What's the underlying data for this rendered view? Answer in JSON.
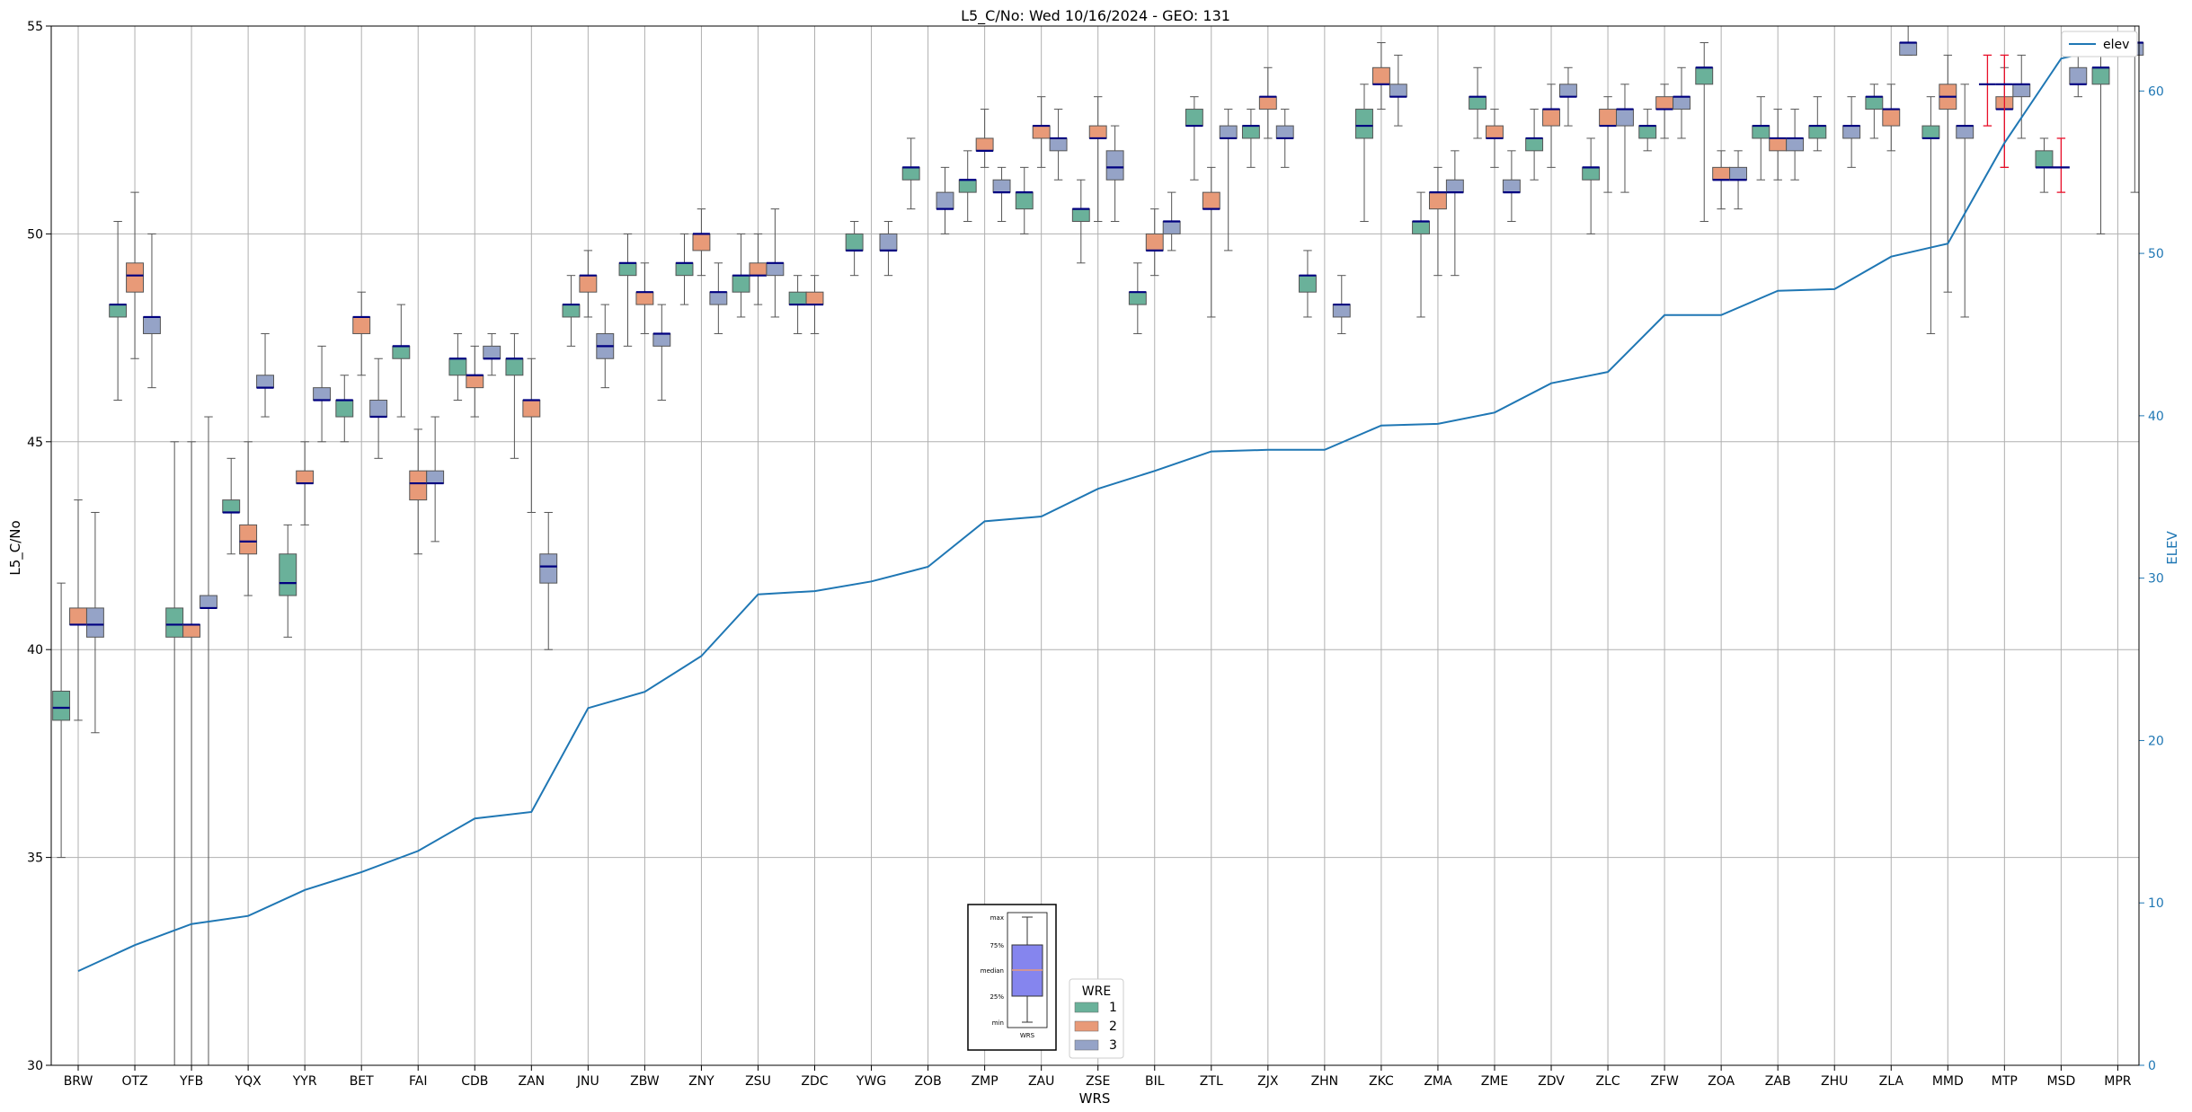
{
  "chart_data": {
    "type": "box",
    "title": "L5_C/No: Wed 10/16/2024 - GEO: 131",
    "xlabel": "WRS",
    "ylabel": "L5_C/No",
    "y2label": "ELEV",
    "ylim": [
      30,
      55
    ],
    "y2lim": [
      0,
      64
    ],
    "yticks": [
      "30",
      "35",
      "40",
      "45",
      "50",
      "55"
    ],
    "y2ticks": [
      "0",
      "10",
      "20",
      "30",
      "40",
      "50",
      "60"
    ],
    "grid": true,
    "categories": [
      "BRW",
      "OTZ",
      "YFB",
      "YQX",
      "YYR",
      "BET",
      "FAI",
      "CDB",
      "ZAN",
      "JNU",
      "ZBW",
      "ZNY",
      "ZSU",
      "ZDC",
      "YWG",
      "ZOB",
      "ZMP",
      "ZAU",
      "ZSE",
      "BIL",
      "ZTL",
      "ZJX",
      "ZHN",
      "ZKC",
      "ZMA",
      "ZME",
      "ZDV",
      "ZLC",
      "ZFW",
      "ZOA",
      "ZAB",
      "ZHU",
      "ZLA",
      "MMD",
      "MTP",
      "MSD",
      "MPR"
    ],
    "legend": {
      "title": "WRE",
      "entries": [
        "1",
        "2",
        "3"
      ],
      "colors": [
        "#6ab19a",
        "#e89a78",
        "#95a3c7"
      ],
      "placement": "bottom-center"
    },
    "line_legend": {
      "label": "elev",
      "placement": "top-right",
      "color": "#1f77b4"
    },
    "key_labels": [
      "max",
      "75%",
      "median",
      "25%",
      "min",
      "WRS"
    ],
    "elev": [
      5.8,
      7.4,
      8.7,
      9.2,
      10.8,
      11.9,
      13.2,
      15.2,
      15.6,
      22.0,
      23.0,
      25.2,
      29.0,
      29.2,
      29.8,
      30.7,
      33.5,
      33.8,
      35.5,
      36.6,
      37.8,
      37.9,
      37.9,
      39.4,
      39.5,
      40.2,
      42.0,
      42.7,
      46.2,
      46.2,
      47.7,
      47.8,
      49.8,
      50.6,
      56.8,
      62.0,
      62.8
    ],
    "series": [
      {
        "name": "1",
        "color": "#6ab19a",
        "boxes": [
          [
            0,
            35.0,
            38.3,
            38.6,
            39.0,
            41.6
          ],
          [
            1,
            46.0,
            48.0,
            48.3,
            48.3,
            50.3
          ],
          [
            2,
            30.0,
            40.3,
            40.6,
            41.0,
            45.0
          ],
          [
            3,
            42.3,
            43.3,
            43.3,
            43.6,
            44.6
          ],
          [
            4,
            40.3,
            41.3,
            41.6,
            42.3,
            43.0
          ],
          [
            5,
            45.0,
            45.6,
            46.0,
            46.0,
            46.6
          ],
          [
            6,
            45.6,
            47.0,
            47.3,
            47.3,
            48.3
          ],
          [
            7,
            46.0,
            46.6,
            47.0,
            47.0,
            47.6
          ],
          [
            8,
            44.6,
            46.6,
            47.0,
            47.0,
            47.6
          ],
          [
            9,
            47.3,
            48.0,
            48.3,
            48.3,
            49.0
          ],
          [
            10,
            47.3,
            49.0,
            49.3,
            49.3,
            50.0
          ],
          [
            11,
            48.3,
            49.0,
            49.3,
            49.3,
            50.0
          ],
          [
            12,
            48.0,
            48.6,
            49.0,
            49.0,
            50.0
          ],
          [
            13,
            47.6,
            48.3,
            48.3,
            48.6,
            49.0
          ],
          [
            14,
            49.0,
            49.6,
            49.6,
            50.0,
            50.3
          ],
          [
            15,
            50.6,
            51.3,
            51.6,
            51.6,
            52.3
          ],
          [
            16,
            50.3,
            51.0,
            51.3,
            51.3,
            52.0
          ],
          [
            17,
            50.0,
            50.6,
            51.0,
            51.0,
            51.6
          ],
          [
            18,
            49.3,
            50.3,
            50.6,
            50.6,
            51.3
          ],
          [
            19,
            47.6,
            48.3,
            48.6,
            48.6,
            49.3
          ],
          [
            20,
            51.3,
            52.6,
            52.6,
            53.0,
            53.3
          ],
          [
            21,
            51.6,
            52.3,
            52.6,
            52.6,
            53.0
          ],
          [
            22,
            48.0,
            48.6,
            49.0,
            49.0,
            49.6
          ],
          [
            23,
            50.3,
            52.3,
            52.6,
            53.0,
            53.6
          ],
          [
            24,
            48.0,
            50.0,
            50.3,
            50.3,
            51.0
          ],
          [
            25,
            52.3,
            53.0,
            53.3,
            53.3,
            54.0
          ],
          [
            26,
            51.3,
            52.0,
            52.3,
            52.3,
            53.0
          ],
          [
            27,
            50.0,
            51.3,
            51.6,
            51.6,
            52.3
          ],
          [
            28,
            52.0,
            52.3,
            52.6,
            52.6,
            53.0
          ],
          [
            29,
            50.3,
            53.6,
            54.0,
            54.0,
            54.6
          ],
          [
            30,
            51.3,
            52.3,
            52.6,
            52.6,
            53.3
          ],
          [
            31,
            52.0,
            52.3,
            52.6,
            52.6,
            53.3
          ],
          [
            32,
            52.3,
            53.0,
            53.3,
            53.3,
            53.6
          ],
          [
            33,
            47.6,
            52.3,
            52.3,
            52.6,
            53.3
          ],
          [
            35,
            51.0,
            51.6,
            51.6,
            52.0,
            52.3
          ],
          [
            36,
            50.0,
            53.6,
            54.0,
            54.0,
            54.3
          ]
        ]
      },
      {
        "name": "2",
        "color": "#e89a78",
        "boxes": [
          [
            0,
            38.3,
            40.6,
            40.6,
            41.0,
            43.6
          ],
          [
            1,
            47.0,
            48.6,
            49.0,
            49.3,
            51.0
          ],
          [
            2,
            30.0,
            40.3,
            40.6,
            40.6,
            45.0
          ],
          [
            3,
            41.3,
            42.3,
            42.6,
            43.0,
            45.0
          ],
          [
            4,
            43.0,
            44.0,
            44.0,
            44.3,
            45.0
          ],
          [
            5,
            46.6,
            47.6,
            48.0,
            48.0,
            48.6
          ],
          [
            6,
            42.3,
            43.6,
            44.0,
            44.3,
            45.3
          ],
          [
            7,
            45.6,
            46.3,
            46.6,
            46.6,
            47.3
          ],
          [
            8,
            43.3,
            45.6,
            46.0,
            46.0,
            47.0
          ],
          [
            9,
            48.0,
            48.6,
            49.0,
            49.0,
            49.6
          ],
          [
            10,
            47.6,
            48.3,
            48.6,
            48.6,
            49.3
          ],
          [
            11,
            49.0,
            49.6,
            50.0,
            50.0,
            50.6
          ],
          [
            12,
            48.3,
            49.0,
            49.0,
            49.3,
            50.0
          ],
          [
            13,
            47.6,
            48.3,
            48.3,
            48.6,
            49.0
          ],
          [
            16,
            51.6,
            52.0,
            52.0,
            52.3,
            53.0
          ],
          [
            17,
            51.6,
            52.3,
            52.6,
            52.6,
            53.3
          ],
          [
            18,
            50.3,
            52.3,
            52.3,
            52.6,
            53.3
          ],
          [
            19,
            49.0,
            49.6,
            49.6,
            50.0,
            50.6
          ],
          [
            20,
            48.0,
            50.6,
            50.6,
            51.0,
            51.6
          ],
          [
            21,
            52.3,
            53.0,
            53.3,
            53.3,
            54.0
          ],
          [
            23,
            53.0,
            53.6,
            53.6,
            54.0,
            54.6
          ],
          [
            24,
            49.0,
            50.6,
            51.0,
            51.0,
            51.6
          ],
          [
            25,
            51.6,
            52.3,
            52.3,
            52.6,
            53.0
          ],
          [
            26,
            51.6,
            52.6,
            53.0,
            53.0,
            53.6
          ],
          [
            27,
            51.0,
            52.6,
            52.6,
            53.0,
            53.3
          ],
          [
            28,
            52.3,
            53.0,
            53.0,
            53.3,
            53.6
          ],
          [
            29,
            50.6,
            51.3,
            51.3,
            51.6,
            52.0
          ],
          [
            30,
            51.3,
            52.0,
            52.3,
            52.3,
            53.0
          ],
          [
            32,
            52.0,
            52.6,
            53.0,
            53.0,
            53.6
          ],
          [
            33,
            48.6,
            53.0,
            53.3,
            53.6,
            54.3
          ],
          [
            34,
            51.6,
            53.0,
            53.0,
            53.3,
            54.0
          ]
        ]
      },
      {
        "name": "3",
        "color": "#95a3c7",
        "boxes": [
          [
            0,
            38.0,
            40.3,
            40.6,
            41.0,
            43.3
          ],
          [
            1,
            46.3,
            47.6,
            48.0,
            48.0,
            50.0
          ],
          [
            2,
            30.0,
            41.0,
            41.0,
            41.3,
            45.6
          ],
          [
            3,
            45.6,
            46.3,
            46.3,
            46.6,
            47.6
          ],
          [
            4,
            45.0,
            46.0,
            46.0,
            46.3,
            47.3
          ],
          [
            5,
            44.6,
            45.6,
            45.6,
            46.0,
            47.0
          ],
          [
            6,
            42.6,
            44.0,
            44.0,
            44.3,
            45.6
          ],
          [
            7,
            46.6,
            47.0,
            47.0,
            47.3,
            47.6
          ],
          [
            8,
            40.0,
            41.6,
            42.0,
            42.3,
            43.3
          ],
          [
            9,
            46.3,
            47.0,
            47.3,
            47.6,
            48.3
          ],
          [
            10,
            46.0,
            47.3,
            47.6,
            47.6,
            48.3
          ],
          [
            11,
            47.6,
            48.3,
            48.6,
            48.6,
            49.3
          ],
          [
            12,
            48.0,
            49.0,
            49.3,
            49.3,
            50.6
          ],
          [
            14,
            49.0,
            49.6,
            49.6,
            50.0,
            50.3
          ],
          [
            15,
            50.0,
            50.6,
            50.6,
            51.0,
            51.6
          ],
          [
            16,
            50.3,
            51.0,
            51.0,
            51.3,
            51.6
          ],
          [
            17,
            51.3,
            52.0,
            52.3,
            52.3,
            53.0
          ],
          [
            18,
            50.3,
            51.3,
            51.6,
            52.0,
            52.6
          ],
          [
            19,
            49.6,
            50.0,
            50.3,
            50.3,
            51.0
          ],
          [
            20,
            49.6,
            52.3,
            52.3,
            52.6,
            53.0
          ],
          [
            21,
            51.6,
            52.3,
            52.3,
            52.6,
            53.0
          ],
          [
            22,
            47.6,
            48.0,
            48.3,
            48.3,
            49.0
          ],
          [
            23,
            52.6,
            53.3,
            53.3,
            53.6,
            54.3
          ],
          [
            24,
            49.0,
            51.0,
            51.0,
            51.3,
            52.0
          ],
          [
            25,
            50.3,
            51.0,
            51.0,
            51.3,
            52.0
          ],
          [
            26,
            52.6,
            53.3,
            53.3,
            53.6,
            54.0
          ],
          [
            27,
            51.0,
            52.6,
            53.0,
            53.0,
            53.6
          ],
          [
            28,
            52.3,
            53.0,
            53.3,
            53.3,
            54.0
          ],
          [
            29,
            50.6,
            51.3,
            51.3,
            51.6,
            52.0
          ],
          [
            30,
            51.3,
            52.0,
            52.3,
            52.3,
            53.0
          ],
          [
            31,
            51.6,
            52.3,
            52.6,
            52.6,
            53.3
          ],
          [
            32,
            54.3,
            54.3,
            54.6,
            54.6,
            55.0
          ],
          [
            33,
            48.0,
            52.3,
            52.6,
            52.6,
            53.6
          ],
          [
            34,
            52.3,
            53.3,
            53.6,
            53.6,
            54.3
          ],
          [
            35,
            53.3,
            53.6,
            53.6,
            54.0,
            54.3
          ],
          [
            36,
            51.0,
            54.3,
            54.6,
            54.6,
            55.0
          ]
        ]
      }
    ],
    "red_whiskers": [
      [
        34,
        1,
        51.6,
        53.6,
        54.3
      ],
      [
        35,
        1,
        51.0,
        51.6,
        52.3
      ],
      [
        34,
        0,
        52.6,
        53.6,
        54.3
      ]
    ]
  }
}
